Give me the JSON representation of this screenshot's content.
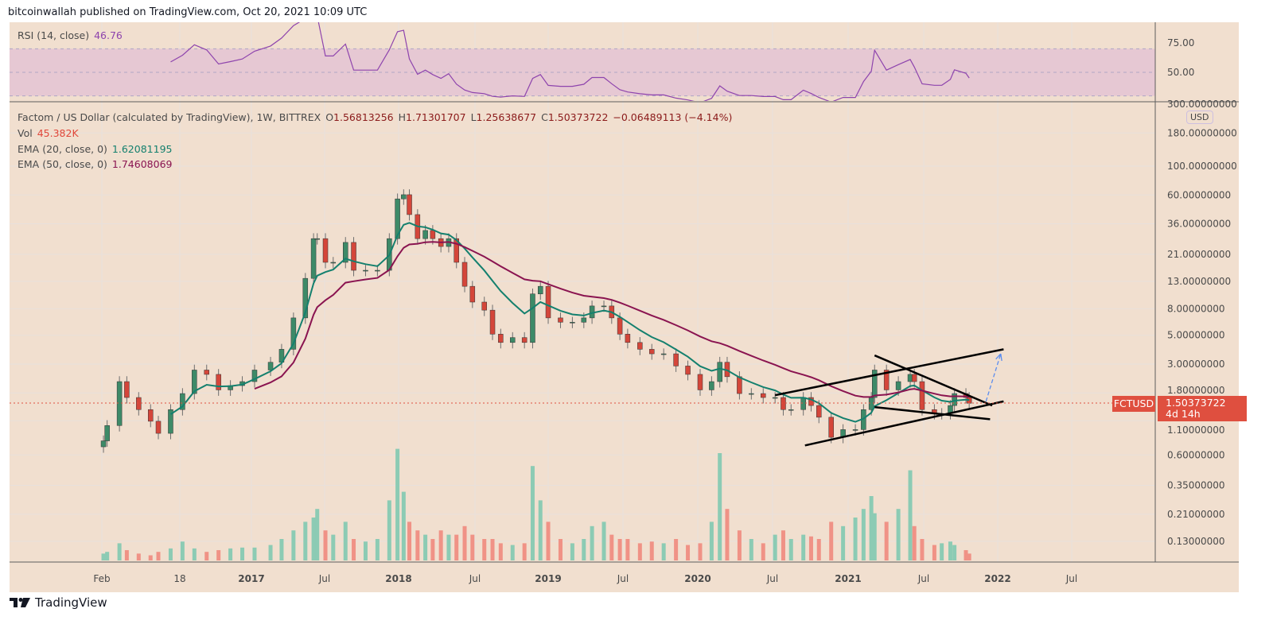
{
  "publisher": "bitcoinwallah published on TradingView.com, Oct 20, 2021 10:09 UTC",
  "brand": "TradingView",
  "colors": {
    "background": "#f1dfcf",
    "up": "#3d8a68",
    "down": "#d4463a",
    "vol_up": "#8ccbb4",
    "vol_down": "#f09286",
    "ema20": "#14806e",
    "ema50": "#8a1450",
    "rsi": "#8e44ad",
    "rsi_band": "#e6c8d3",
    "price_line": "#df4f3f",
    "arrow": "#5b8def"
  },
  "rsi": {
    "label": "RSI (14, close)",
    "value": "46.76",
    "axis_labels": [
      "75.00",
      "50.00"
    ],
    "levels": [
      70,
      30
    ]
  },
  "legend": {
    "symbol": "Factom / US Dollar (calculated by TradingView), 1W, BITTREX",
    "o_label": "O",
    "o": "1.56813256",
    "h_label": "H",
    "h": "1.71301707",
    "l_label": "L",
    "l": "1.25638677",
    "c_label": "C",
    "c": "1.50373722",
    "change": "−0.06489113 (−4.14%)",
    "vol_label": "Vol",
    "vol": "45.382K",
    "ema20_label": "EMA (20, close, 0)",
    "ema20": "1.62081195",
    "ema50_label": "EMA (50, close, 0)",
    "ema50": "1.74608069"
  },
  "price_axis": {
    "currency": "USD",
    "labels": [
      "300.00000000",
      "180.00000000",
      "100.00000000",
      "60.00000000",
      "36.00000000",
      "21.00000000",
      "13.00000000",
      "8.00000000",
      "5.00000000",
      "3.00000000",
      "1.80000000",
      "1.10000000",
      "0.60000000",
      "0.35000000",
      "0.21000000",
      "0.13000000"
    ]
  },
  "badges": {
    "symbol": "FCTUSD",
    "price": "1.50373722",
    "countdown": "4d 14h"
  },
  "time_axis": [
    "Feb",
    "18",
    "2017",
    "Jul",
    "2018",
    "Jul",
    "2019",
    "Jul",
    "2020",
    "Jul",
    "2021",
    "Jul",
    "2022",
    "Jul"
  ],
  "chart_data": {
    "type": "candlestick",
    "scale": "log",
    "ylim": [
      0.1,
      300
    ],
    "interval": "1W",
    "ema_periods": [
      20,
      50
    ],
    "candles": [
      [
        "2016-01-04",
        0.77,
        8
      ],
      [
        "2016-01-13",
        1.01,
        10
      ],
      [
        "2016-02-12",
        2.2,
        20
      ],
      [
        "2016-03-01",
        1.66,
        12
      ],
      [
        "2016-03-30",
        1.34,
        8
      ],
      [
        "2016-04-28",
        1.09,
        6
      ],
      [
        "2016-05-17",
        0.88,
        10
      ],
      [
        "2016-06-16",
        1.34,
        14
      ],
      [
        "2016-07-15",
        1.78,
        22
      ],
      [
        "2016-08-13",
        2.7,
        14
      ],
      [
        "2016-09-12",
        2.5,
        10
      ],
      [
        "2016-10-11",
        1.9,
        12
      ],
      [
        "2016-11-09",
        2.05,
        14
      ],
      [
        "2016-12-08",
        2.2,
        15
      ],
      [
        "2017-01-07",
        2.7,
        15
      ],
      [
        "2017-02-15",
        3.1,
        18
      ],
      [
        "2017-03-14",
        3.9,
        25
      ],
      [
        "2017-04-12",
        6.8,
        35
      ],
      [
        "2017-05-11",
        13.7,
        45
      ],
      [
        "2017-05-31",
        27.7,
        50
      ],
      [
        "2017-06-09",
        27.7,
        60
      ],
      [
        "2017-06-29",
        18.2,
        35
      ],
      [
        "2017-07-18",
        18.2,
        30
      ],
      [
        "2017-08-17",
        25.9,
        45
      ],
      [
        "2017-09-06",
        15.8,
        25
      ],
      [
        "2017-10-05",
        15.8,
        22
      ],
      [
        "2017-11-03",
        15.8,
        25
      ],
      [
        "2017-12-02",
        27.7,
        70
      ],
      [
        "2017-12-22",
        56,
        130
      ],
      [
        "2018-01-06",
        60.3,
        80
      ],
      [
        "2018-01-20",
        42.4,
        45
      ],
      [
        "2018-02-09",
        27.7,
        35
      ],
      [
        "2018-02-28",
        32,
        30
      ],
      [
        "2018-03-18",
        27.7,
        25
      ],
      [
        "2018-04-07",
        24.1,
        35
      ],
      [
        "2018-04-26",
        27.7,
        30
      ],
      [
        "2018-05-15",
        18.2,
        30
      ],
      [
        "2018-06-04",
        11.9,
        40
      ],
      [
        "2018-06-23",
        9.0,
        30
      ],
      [
        "2018-07-22",
        7.8,
        25
      ],
      [
        "2018-08-11",
        5.1,
        25
      ],
      [
        "2018-08-31",
        4.4,
        20
      ],
      [
        "2018-09-29",
        4.8,
        18
      ],
      [
        "2018-10-28",
        4.4,
        20
      ],
      [
        "2018-11-17",
        10.4,
        110
      ],
      [
        "2018-12-06",
        11.9,
        70
      ],
      [
        "2018-12-25",
        6.8,
        45
      ],
      [
        "2019-01-24",
        6.3,
        25
      ],
      [
        "2019-02-22",
        6.3,
        20
      ],
      [
        "2019-03-22",
        6.8,
        25
      ],
      [
        "2019-04-11",
        8.4,
        40
      ],
      [
        "2019-05-10",
        8.4,
        45
      ],
      [
        "2019-05-29",
        6.8,
        30
      ],
      [
        "2019-06-18",
        5.1,
        25
      ],
      [
        "2019-07-07",
        4.4,
        25
      ],
      [
        "2019-08-06",
        3.9,
        20
      ],
      [
        "2019-09-04",
        3.6,
        22
      ],
      [
        "2019-10-03",
        3.6,
        20
      ],
      [
        "2019-11-02",
        2.9,
        25
      ],
      [
        "2019-12-01",
        2.5,
        18
      ],
      [
        "2019-12-31",
        1.9,
        20
      ],
      [
        "2020-01-28",
        2.2,
        45
      ],
      [
        "2020-02-17",
        3.1,
        125
      ],
      [
        "2020-03-06",
        2.4,
        60
      ],
      [
        "2020-04-05",
        1.78,
        35
      ],
      [
        "2020-05-04",
        1.78,
        25
      ],
      [
        "2020-06-02",
        1.66,
        20
      ],
      [
        "2020-07-01",
        1.66,
        30
      ],
      [
        "2020-07-21",
        1.34,
        35
      ],
      [
        "2020-08-09",
        1.34,
        25
      ],
      [
        "2020-09-08",
        1.66,
        30
      ],
      [
        "2020-09-27",
        1.44,
        28
      ],
      [
        "2020-10-16",
        1.17,
        25
      ],
      [
        "2020-11-15",
        0.82,
        45
      ],
      [
        "2020-12-14",
        0.94,
        40
      ],
      [
        "2021-01-13",
        0.94,
        50
      ],
      [
        "2021-02-02",
        1.34,
        60
      ],
      [
        "2021-02-21",
        1.66,
        75
      ],
      [
        "2021-03-01",
        2.7,
        55
      ],
      [
        "2021-03-30",
        1.9,
        45
      ],
      [
        "2021-04-28",
        2.2,
        60
      ],
      [
        "2021-05-27",
        2.5,
        105
      ],
      [
        "2021-06-06",
        2.2,
        40
      ],
      [
        "2021-06-25",
        1.34,
        25
      ],
      [
        "2021-07-25",
        1.25,
        18
      ],
      [
        "2021-08-12",
        1.25,
        20
      ],
      [
        "2021-09-02",
        1.44,
        22
      ],
      [
        "2021-09-12",
        1.78,
        18
      ],
      [
        "2021-10-10",
        1.66,
        12
      ],
      [
        "2021-10-18",
        1.5,
        8
      ]
    ],
    "last_price": 1.50373722,
    "drawings": [
      {
        "kind": "trendline",
        "from": [
          "2020-07-01",
          1.73
        ],
        "to": [
          "2022-01-10",
          3.9
        ]
      },
      {
        "kind": "trendline",
        "from": [
          "2020-09-12",
          0.71
        ],
        "to": [
          "2022-01-10",
          1.55
        ]
      },
      {
        "kind": "trendline",
        "from": [
          "2021-03-01",
          3.5
        ],
        "to": [
          "2021-12-13",
          1.44
        ]
      },
      {
        "kind": "trendline",
        "from": [
          "2021-03-01",
          1.4
        ],
        "to": [
          "2021-12-08",
          1.13
        ]
      },
      {
        "kind": "arrow",
        "from": [
          "2021-11-28",
          1.55
        ],
        "to": [
          "2022-01-03",
          3.6
        ]
      }
    ]
  }
}
